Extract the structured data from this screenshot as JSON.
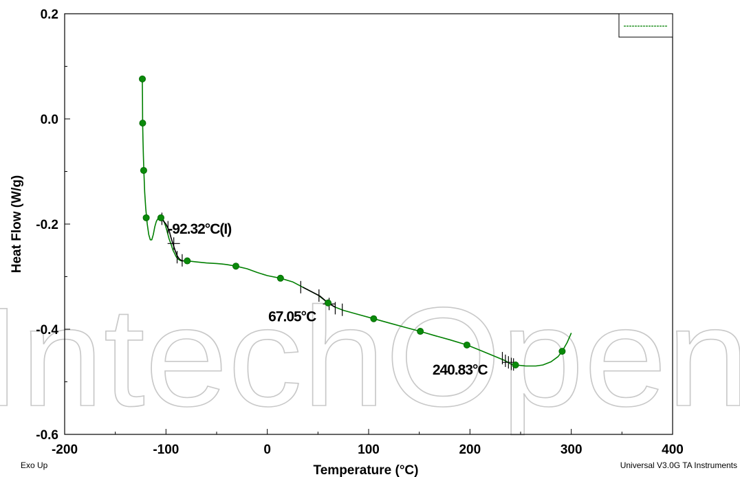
{
  "chart_data": {
    "type": "line",
    "xlabel": "Temperature (°C)",
    "ylabel": "Heat Flow (W/g)",
    "xlim": [
      -200,
      400
    ],
    "ylim": [
      -0.6,
      0.2
    ],
    "x_ticks": [
      -200,
      -100,
      0,
      100,
      200,
      300,
      400
    ],
    "x_tick_labels": [
      "-200",
      "-100",
      "0",
      "100",
      "200",
      "300",
      "400"
    ],
    "y_ticks": [
      0.2,
      0.0,
      -0.2,
      -0.4,
      -0.6
    ],
    "y_tick_labels": [
      "0.2",
      "0.0",
      "-0.2",
      "-0.4",
      "-0.6"
    ],
    "grid": false,
    "legend": "top-right",
    "series": [
      {
        "color": "#007f00",
        "x": [
          -123.4,
          -123.2,
          -123.0,
          -122.7,
          -122.3,
          -121.8,
          -121.0,
          -120.0,
          -118.5,
          -117.0,
          -115.5,
          -114.0,
          -112.5,
          -111.0,
          -109.5,
          -108.0,
          -106.5,
          -105.0,
          -103.5,
          -102.0,
          -100.5,
          -99.0,
          -97.0,
          -95.0,
          -93.0,
          -91.5,
          -90.0,
          -88.5,
          -87.0,
          -85.0,
          -82.0,
          -79.0,
          -70.0,
          -60.0,
          -50.0,
          -45.0,
          -40.0,
          -31.0,
          -20.0,
          -10.0,
          0.0,
          13.0,
          25.0,
          35.0,
          50.0,
          60.0,
          67.0,
          75.0,
          90.0,
          105.0,
          120.0,
          135.0,
          151.0,
          165.0,
          180.0,
          197.0,
          210.0,
          225.0,
          235.0,
          240.0,
          245.0,
          255.0,
          265.0,
          272.0,
          280.0,
          287.0,
          291.0,
          296.0,
          300.0
        ],
        "y": [
          0.076,
          0.04,
          -0.008,
          -0.04,
          -0.07,
          -0.1,
          -0.14,
          -0.17,
          -0.2,
          -0.22,
          -0.23,
          -0.23,
          -0.22,
          -0.205,
          -0.195,
          -0.19,
          -0.188,
          -0.188,
          -0.19,
          -0.195,
          -0.203,
          -0.213,
          -0.228,
          -0.238,
          -0.25,
          -0.256,
          -0.262,
          -0.266,
          -0.268,
          -0.27,
          -0.27,
          -0.27,
          -0.272,
          -0.274,
          -0.275,
          -0.276,
          -0.277,
          -0.28,
          -0.285,
          -0.292,
          -0.298,
          -0.303,
          -0.31,
          -0.32,
          -0.335,
          -0.35,
          -0.358,
          -0.364,
          -0.372,
          -0.38,
          -0.388,
          -0.396,
          -0.404,
          -0.412,
          -0.42,
          -0.43,
          -0.44,
          -0.452,
          -0.46,
          -0.466,
          -0.468,
          -0.47,
          -0.47,
          -0.468,
          -0.462,
          -0.452,
          -0.442,
          -0.425,
          -0.407
        ]
      }
    ],
    "markers": [
      {
        "x": -123.3,
        "y": 0.076
      },
      {
        "x": -123.0,
        "y": -0.008
      },
      {
        "x": -122.0,
        "y": -0.098
      },
      {
        "x": -119.5,
        "y": -0.188
      },
      {
        "x": -105.0,
        "y": -0.188
      },
      {
        "x": -79.0,
        "y": -0.27
      },
      {
        "x": -31.0,
        "y": -0.28
      },
      {
        "x": 13.0,
        "y": -0.303
      },
      {
        "x": 60.0,
        "y": -0.35
      },
      {
        "x": 105.0,
        "y": -0.38
      },
      {
        "x": 151.0,
        "y": -0.404
      },
      {
        "x": 197.0,
        "y": -0.43
      },
      {
        "x": 245.0,
        "y": -0.468
      },
      {
        "x": 291.0,
        "y": -0.442
      }
    ],
    "transitions": [
      {
        "label": "-92.32°C(I)",
        "label_at": [
          -98,
          -0.218
        ],
        "segment_x": [
          -106,
          -103,
          -100,
          -97,
          -95,
          -93,
          -91,
          -89,
          -87,
          -85,
          -83
        ],
        "segment_y": [
          -0.188,
          -0.193,
          -0.2,
          -0.212,
          -0.226,
          -0.238,
          -0.25,
          -0.26,
          -0.266,
          -0.269,
          -0.27
        ],
        "ticks": [
          [
            -104,
            -0.19
          ],
          [
            -98,
            -0.206
          ],
          [
            -92.3,
            -0.237
          ],
          [
            -89,
            -0.263
          ],
          [
            -84,
            -0.269
          ]
        ]
      },
      {
        "label": "67.05°C",
        "label_at": [
          1,
          -0.385
        ],
        "segment_x": [
          35,
          45,
          52,
          60,
          67
        ],
        "segment_y": [
          -0.32,
          -0.33,
          -0.337,
          -0.35,
          -0.358
        ],
        "ticks": [
          [
            33,
            -0.32
          ],
          [
            51,
            -0.336
          ],
          [
            61,
            -0.352
          ],
          [
            67.05,
            -0.36
          ],
          [
            74,
            -0.363
          ]
        ]
      },
      {
        "label": "240.83°C",
        "label_at": [
          163,
          -0.486
        ],
        "segment_x": [],
        "segment_y": [],
        "ticks": [
          [
            232,
            -0.455
          ],
          [
            235,
            -0.46
          ],
          [
            238,
            -0.463
          ],
          [
            240.83,
            -0.466
          ],
          [
            243,
            -0.467
          ]
        ]
      }
    ]
  },
  "footer": {
    "left": "Exo Up",
    "right": "Universal V3.0G TA Instruments"
  },
  "watermark": "IntechOpen"
}
